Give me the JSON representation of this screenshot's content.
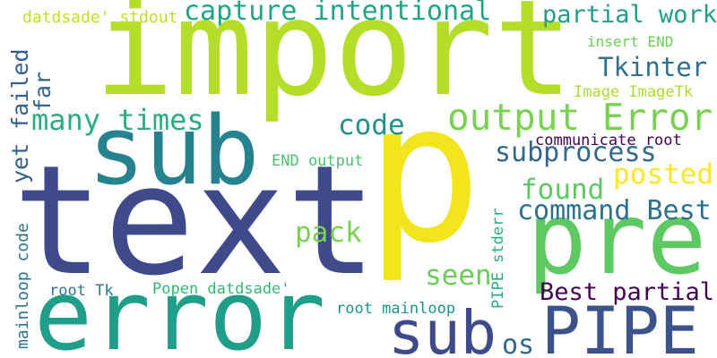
{
  "words": [
    "import",
    "p",
    "text",
    "sub",
    "error",
    "pre",
    "PIPE",
    "sub",
    "os",
    "output Error",
    "capture intentional",
    "partial work",
    "datdsade' stdout",
    "yet failed",
    "far",
    "many times",
    "code",
    "insert END",
    "Tkinter",
    "Image ImageTk",
    "communicate root",
    "subprocess",
    "posted",
    "found",
    "END output",
    "command Best",
    "pack",
    "seen",
    "Best partial",
    "PIPE stderr",
    "mainloop code",
    "root Tk",
    "Popen datdsade'",
    "root mainloop"
  ]
}
